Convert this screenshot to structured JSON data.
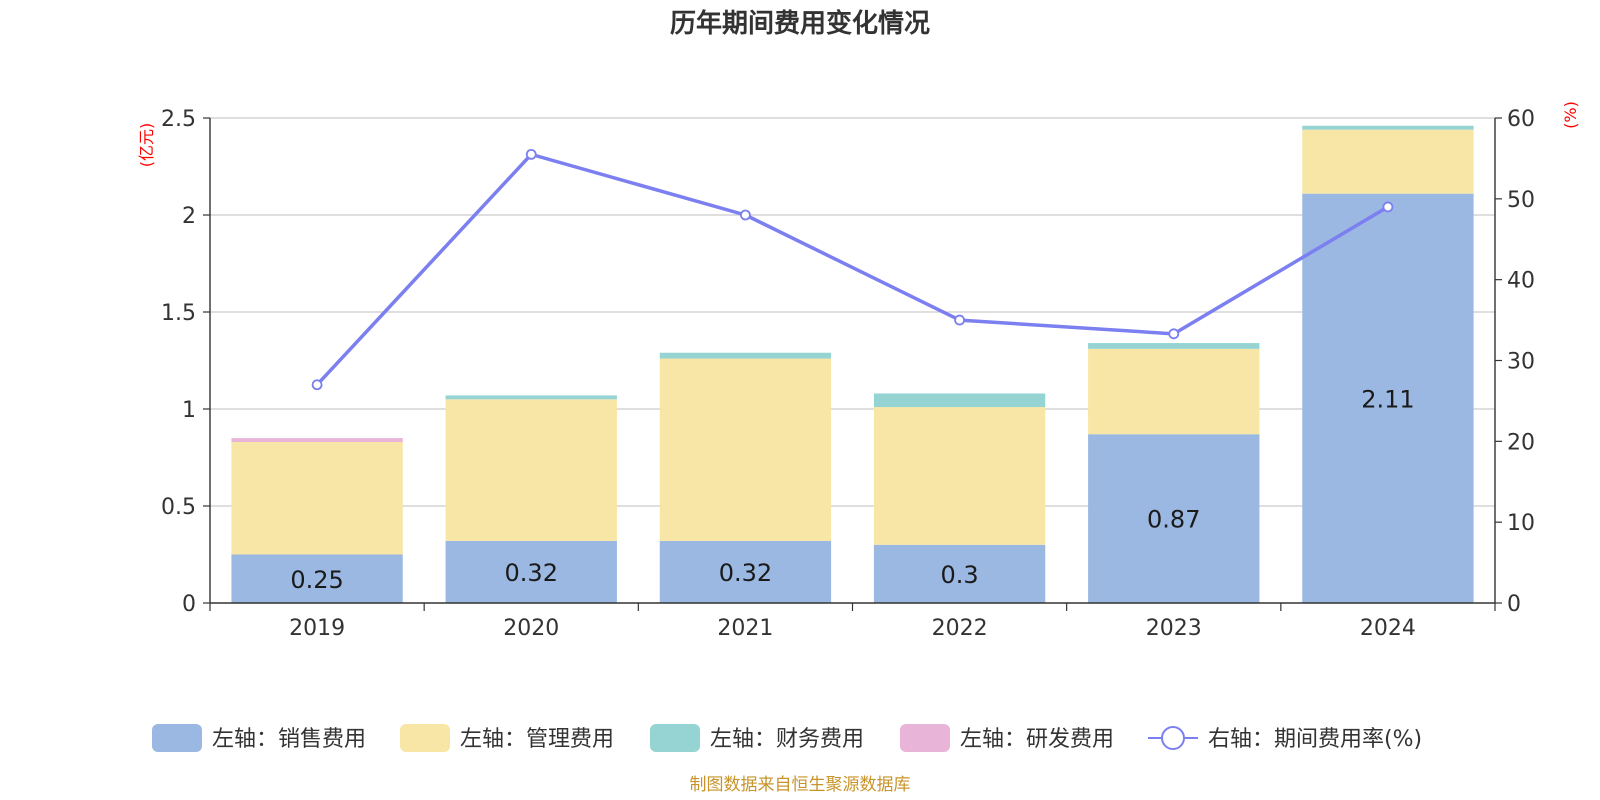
{
  "chart_data": {
    "type": "bar",
    "stacked": true,
    "title": "历年期间费用变化情况",
    "left_axis_unit": "(亿元)",
    "right_axis_unit": "(%)",
    "categories": [
      "2019",
      "2020",
      "2021",
      "2022",
      "2023",
      "2024"
    ],
    "y_left": {
      "ylim": [
        0,
        2.5
      ],
      "ticks": [
        "0",
        "0.5",
        "1",
        "1.5",
        "2",
        "2.5"
      ],
      "tick_values": [
        0,
        0.5,
        1,
        1.5,
        2,
        2.5
      ]
    },
    "y_right": {
      "ylim": [
        0,
        60
      ],
      "ticks": [
        "0",
        "10",
        "20",
        "30",
        "40",
        "50",
        "60"
      ],
      "tick_values": [
        0,
        10,
        20,
        30,
        40,
        50,
        60
      ]
    },
    "grid": true,
    "legend_position": "bottom",
    "series": [
      {
        "name": "左轴：销售费用",
        "type": "bar",
        "axis": "left",
        "color": "#9bb8e2",
        "values": [
          0.25,
          0.32,
          0.32,
          0.3,
          0.87,
          2.11
        ],
        "labels": [
          "0.25",
          "0.32",
          "0.32",
          "0.3",
          "0.87",
          "2.11"
        ]
      },
      {
        "name": "左轴：管理费用",
        "type": "bar",
        "axis": "left",
        "color": "#f7e6a6",
        "values": [
          0.58,
          0.73,
          0.94,
          0.71,
          0.44,
          0.33
        ]
      },
      {
        "name": "左轴：财务费用",
        "type": "bar",
        "axis": "left",
        "color": "#96d4d4",
        "values": [
          0.0,
          0.02,
          0.03,
          0.07,
          0.03,
          0.02
        ]
      },
      {
        "name": "左轴：研发费用",
        "type": "bar",
        "axis": "left",
        "color": "#e8b4d8",
        "values": [
          0.02,
          0.0,
          0.0,
          0.0,
          0.0,
          0.0
        ]
      },
      {
        "name": "右轴：期间费用率(%)",
        "type": "line",
        "axis": "right",
        "color": "#7b7ff0",
        "values": [
          27.0,
          55.5,
          48.0,
          35.0,
          33.3,
          49.0
        ]
      }
    ]
  },
  "source_text": "制图数据来自恒生聚源数据库"
}
